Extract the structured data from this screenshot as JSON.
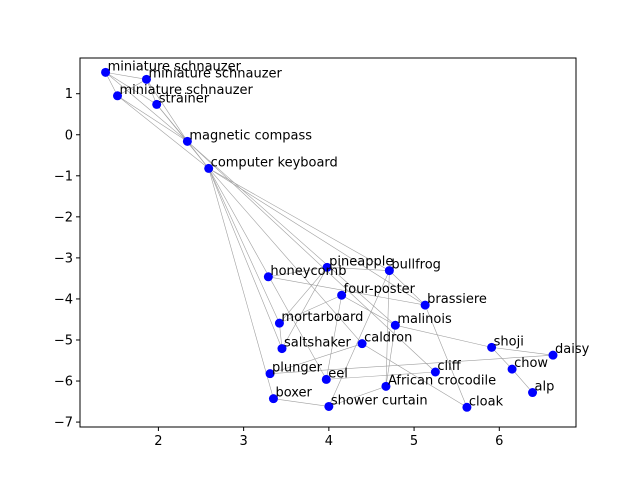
{
  "chart_data": {
    "type": "scatter",
    "title": "",
    "xlabel": "",
    "ylabel": "",
    "xlim": [
      1.08,
      6.9
    ],
    "ylim": [
      -7.12,
      1.87
    ],
    "x_ticks": [
      2,
      3,
      4,
      5,
      6
    ],
    "y_ticks": [
      1,
      0,
      -1,
      -2,
      -3,
      -4,
      -5,
      -6,
      -7
    ],
    "x_tick_labels": [
      "2",
      "3",
      "4",
      "5",
      "6"
    ],
    "y_tick_labels": [
      "1",
      "0",
      "−1",
      "−2",
      "−3",
      "−4",
      "−5",
      "−6",
      "−7"
    ],
    "grid": false,
    "marker_color": "#0000ff",
    "edge_color": "#a0a0a0",
    "points": [
      {
        "label": "miniature schnauzer",
        "x": 1.38,
        "y": 1.52
      },
      {
        "label": "miniature schnauzer",
        "x": 1.86,
        "y": 1.35
      },
      {
        "label": "miniature schnauzer",
        "x": 1.52,
        "y": 0.95
      },
      {
        "label": "strainer",
        "x": 1.98,
        "y": 0.74
      },
      {
        "label": "magnetic compass",
        "x": 2.34,
        "y": -0.16
      },
      {
        "label": "computer keyboard",
        "x": 2.59,
        "y": -0.82
      },
      {
        "label": "pineapple",
        "x": 3.98,
        "y": -3.23
      },
      {
        "label": "bullfrog",
        "x": 4.71,
        "y": -3.31
      },
      {
        "label": "honeycomb",
        "x": 3.29,
        "y": -3.46
      },
      {
        "label": "four-poster",
        "x": 4.15,
        "y": -3.91
      },
      {
        "label": "brassiere",
        "x": 5.13,
        "y": -4.15
      },
      {
        "label": "mortarboard",
        "x": 3.42,
        "y": -4.59
      },
      {
        "label": "malinois",
        "x": 4.78,
        "y": -4.64
      },
      {
        "label": "caldron",
        "x": 4.39,
        "y": -5.09
      },
      {
        "label": "shoji",
        "x": 5.91,
        "y": -5.18
      },
      {
        "label": "saltshaker",
        "x": 3.45,
        "y": -5.21
      },
      {
        "label": "daisy",
        "x": 6.63,
        "y": -5.37
      },
      {
        "label": "chow",
        "x": 6.15,
        "y": -5.71
      },
      {
        "label": "plunger",
        "x": 3.31,
        "y": -5.82
      },
      {
        "label": "cliff",
        "x": 5.25,
        "y": -5.78
      },
      {
        "label": "eel",
        "x": 3.97,
        "y": -5.96
      },
      {
        "label": "African crocodile",
        "x": 4.67,
        "y": -6.13
      },
      {
        "label": "alp",
        "x": 6.39,
        "y": -6.28
      },
      {
        "label": "boxer",
        "x": 3.35,
        "y": -6.43
      },
      {
        "label": "shower curtain",
        "x": 4.0,
        "y": -6.62
      },
      {
        "label": "cloak",
        "x": 5.62,
        "y": -6.64
      }
    ],
    "edges": [
      [
        0,
        1
      ],
      [
        0,
        2
      ],
      [
        0,
        3
      ],
      [
        1,
        2
      ],
      [
        1,
        3
      ],
      [
        0,
        4
      ],
      [
        1,
        4
      ],
      [
        2,
        4
      ],
      [
        3,
        4
      ],
      [
        4,
        5
      ],
      [
        4,
        12
      ],
      [
        4,
        19
      ],
      [
        5,
        7
      ],
      [
        5,
        10
      ],
      [
        5,
        13
      ],
      [
        5,
        11
      ],
      [
        5,
        20
      ],
      [
        5,
        23
      ],
      [
        5,
        15
      ],
      [
        2,
        5
      ],
      [
        3,
        5
      ],
      [
        6,
        8
      ],
      [
        6,
        7
      ],
      [
        6,
        11
      ],
      [
        6,
        15
      ],
      [
        7,
        10
      ],
      [
        7,
        21
      ],
      [
        7,
        24
      ],
      [
        8,
        10
      ],
      [
        9,
        12
      ],
      [
        9,
        11
      ],
      [
        9,
        20
      ],
      [
        12,
        21
      ],
      [
        12,
        14
      ],
      [
        13,
        18
      ],
      [
        13,
        25
      ],
      [
        14,
        16
      ],
      [
        14,
        17
      ],
      [
        16,
        18
      ],
      [
        17,
        22
      ],
      [
        19,
        20
      ],
      [
        21,
        24
      ],
      [
        23,
        24
      ],
      [
        11,
        15
      ],
      [
        10,
        25
      ]
    ]
  }
}
